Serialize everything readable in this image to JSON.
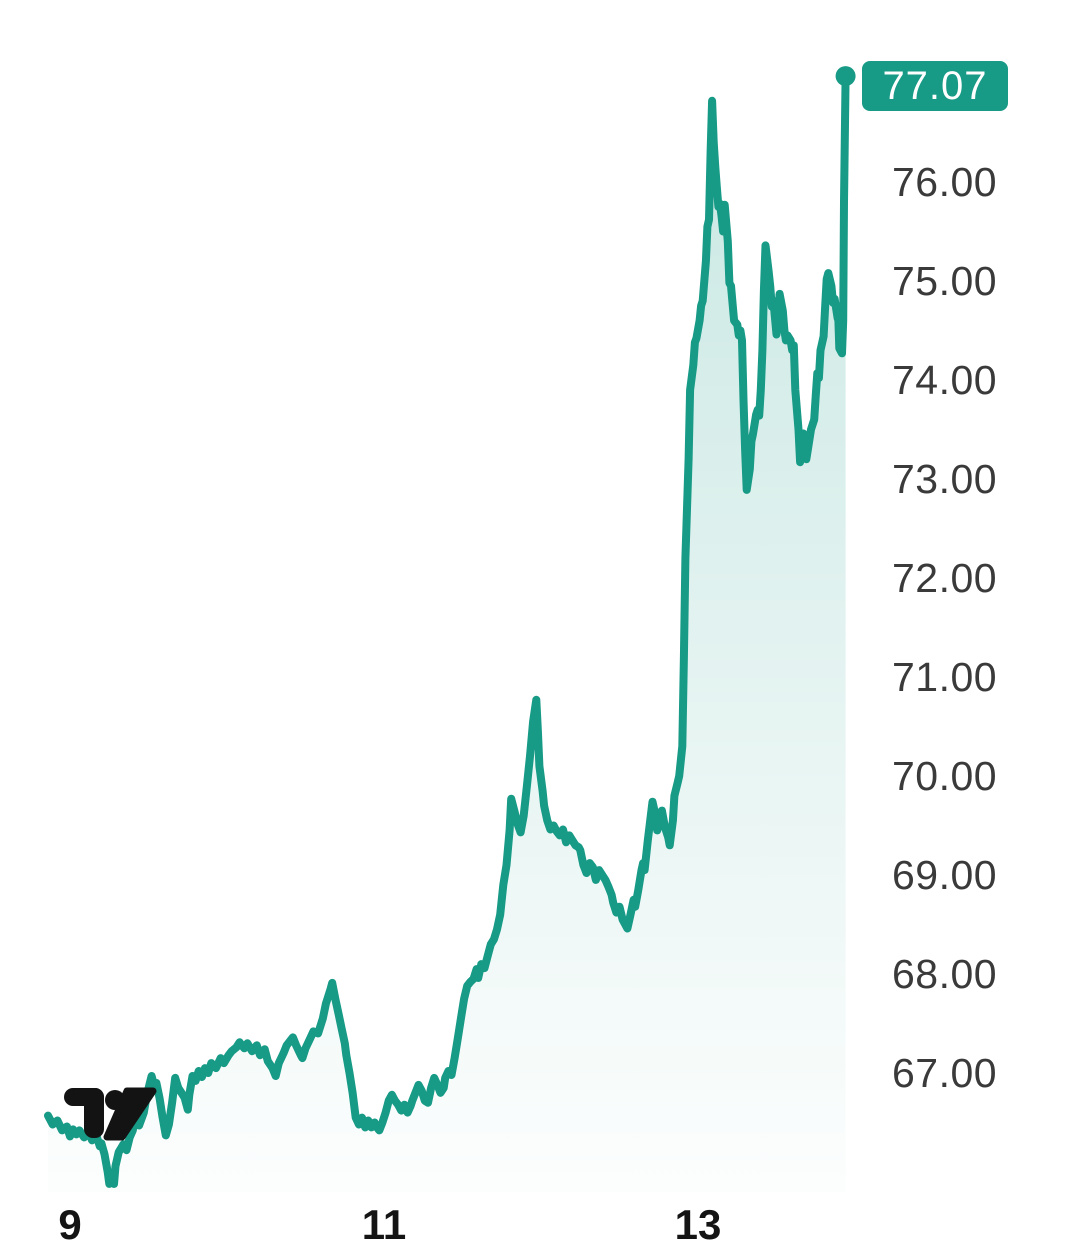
{
  "chart_data": {
    "type": "area",
    "title": "",
    "last_price": 77.07,
    "last_price_label": "77.07",
    "x_axis": {
      "label": "",
      "range": [
        8.85,
        13.95
      ],
      "ticks": [
        {
          "value": 9,
          "label": "9"
        },
        {
          "value": 11,
          "label": "11"
        },
        {
          "value": 13,
          "label": "13"
        }
      ]
    },
    "y_axis": {
      "label": "",
      "range": [
        65.8,
        77.2
      ],
      "ticks": [
        {
          "value": 76,
          "label": "76.00"
        },
        {
          "value": 75,
          "label": "75.00"
        },
        {
          "value": 74,
          "label": "74.00"
        },
        {
          "value": 73,
          "label": "73.00"
        },
        {
          "value": 72,
          "label": "72.00"
        },
        {
          "value": 71,
          "label": "71.00"
        },
        {
          "value": 70,
          "label": "70.00"
        },
        {
          "value": 69,
          "label": "69.00"
        },
        {
          "value": 68,
          "label": "68.00"
        },
        {
          "value": 67,
          "label": "67.00"
        }
      ]
    },
    "grid": false,
    "legend": false,
    "series": [
      {
        "name": "price",
        "points": [
          [
            8.86,
            66.57
          ],
          [
            8.89,
            66.48
          ],
          [
            8.92,
            66.52
          ],
          [
            8.95,
            66.42
          ],
          [
            8.98,
            66.46
          ],
          [
            9.0,
            66.36
          ],
          [
            9.02,
            66.43
          ],
          [
            9.04,
            66.38
          ],
          [
            9.06,
            66.42
          ],
          [
            9.09,
            66.35
          ],
          [
            9.12,
            66.4
          ],
          [
            9.14,
            66.32
          ],
          [
            9.17,
            66.36
          ],
          [
            9.19,
            66.26
          ],
          [
            9.2,
            66.29
          ],
          [
            9.22,
            66.18
          ],
          [
            9.24,
            66.0
          ],
          [
            9.25,
            65.88
          ],
          [
            9.26,
            65.96
          ],
          [
            9.28,
            65.88
          ],
          [
            9.29,
            66.06
          ],
          [
            9.31,
            66.2
          ],
          [
            9.34,
            66.28
          ],
          [
            9.36,
            66.22
          ],
          [
            9.38,
            66.35
          ],
          [
            9.4,
            66.42
          ],
          [
            9.41,
            66.52
          ],
          [
            9.44,
            66.47
          ],
          [
            9.47,
            66.6
          ],
          [
            9.49,
            66.78
          ],
          [
            9.52,
            66.97
          ],
          [
            9.54,
            66.85
          ],
          [
            9.55,
            66.9
          ],
          [
            9.57,
            66.75
          ],
          [
            9.59,
            66.55
          ],
          [
            9.61,
            66.37
          ],
          [
            9.63,
            66.48
          ],
          [
            9.65,
            66.7
          ],
          [
            9.67,
            66.95
          ],
          [
            9.69,
            66.85
          ],
          [
            9.71,
            66.8
          ],
          [
            9.73,
            66.75
          ],
          [
            9.75,
            66.63
          ],
          [
            9.76,
            66.78
          ],
          [
            9.78,
            66.97
          ],
          [
            9.8,
            66.92
          ],
          [
            9.82,
            67.02
          ],
          [
            9.84,
            66.96
          ],
          [
            9.86,
            67.05
          ],
          [
            9.88,
            67.0
          ],
          [
            9.9,
            67.1
          ],
          [
            9.93,
            67.05
          ],
          [
            9.96,
            67.15
          ],
          [
            9.98,
            67.1
          ],
          [
            10.01,
            67.18
          ],
          [
            10.03,
            67.22
          ],
          [
            10.06,
            67.26
          ],
          [
            10.08,
            67.31
          ],
          [
            10.11,
            67.25
          ],
          [
            10.13,
            67.3
          ],
          [
            10.16,
            67.22
          ],
          [
            10.19,
            67.28
          ],
          [
            10.21,
            67.18
          ],
          [
            10.24,
            67.24
          ],
          [
            10.26,
            67.12
          ],
          [
            10.29,
            67.05
          ],
          [
            10.31,
            66.97
          ],
          [
            10.33,
            67.1
          ],
          [
            10.36,
            67.2
          ],
          [
            10.38,
            67.28
          ],
          [
            10.4,
            67.32
          ],
          [
            10.42,
            67.36
          ],
          [
            10.44,
            67.28
          ],
          [
            10.47,
            67.18
          ],
          [
            10.48,
            67.15
          ],
          [
            10.5,
            67.25
          ],
          [
            10.53,
            67.35
          ],
          [
            10.55,
            67.42
          ],
          [
            10.58,
            67.4
          ],
          [
            10.61,
            67.55
          ],
          [
            10.63,
            67.7
          ],
          [
            10.66,
            67.85
          ],
          [
            10.67,
            67.91
          ],
          [
            10.69,
            67.75
          ],
          [
            10.71,
            67.6
          ],
          [
            10.73,
            67.45
          ],
          [
            10.75,
            67.3
          ],
          [
            10.76,
            67.18
          ],
          [
            10.78,
            67.0
          ],
          [
            10.8,
            66.8
          ],
          [
            10.82,
            66.55
          ],
          [
            10.84,
            66.48
          ],
          [
            10.86,
            66.55
          ],
          [
            10.88,
            66.45
          ],
          [
            10.9,
            66.52
          ],
          [
            10.92,
            66.45
          ],
          [
            10.94,
            66.5
          ],
          [
            10.96,
            66.44
          ],
          [
            10.97,
            66.42
          ],
          [
            10.99,
            66.5
          ],
          [
            11.01,
            66.6
          ],
          [
            11.03,
            66.72
          ],
          [
            11.05,
            66.78
          ],
          [
            11.07,
            66.72
          ],
          [
            11.09,
            66.68
          ],
          [
            11.11,
            66.62
          ],
          [
            11.13,
            66.68
          ],
          [
            11.15,
            66.6
          ],
          [
            11.17,
            66.67
          ],
          [
            11.18,
            66.72
          ],
          [
            11.2,
            66.8
          ],
          [
            11.22,
            66.88
          ],
          [
            11.24,
            66.82
          ],
          [
            11.26,
            66.72
          ],
          [
            11.28,
            66.7
          ],
          [
            11.3,
            66.85
          ],
          [
            11.32,
            66.95
          ],
          [
            11.34,
            66.88
          ],
          [
            11.36,
            66.8
          ],
          [
            11.38,
            66.85
          ],
          [
            11.39,
            66.95
          ],
          [
            11.41,
            67.02
          ],
          [
            11.43,
            66.98
          ],
          [
            11.45,
            67.15
          ],
          [
            11.47,
            67.35
          ],
          [
            11.49,
            67.55
          ],
          [
            11.51,
            67.75
          ],
          [
            11.53,
            67.88
          ],
          [
            11.55,
            67.92
          ],
          [
            11.57,
            67.95
          ],
          [
            11.59,
            68.05
          ],
          [
            11.6,
            67.96
          ],
          [
            11.62,
            68.1
          ],
          [
            11.64,
            68.06
          ],
          [
            11.66,
            68.18
          ],
          [
            11.68,
            68.3
          ],
          [
            11.7,
            68.35
          ],
          [
            11.72,
            68.45
          ],
          [
            11.74,
            68.6
          ],
          [
            11.76,
            68.9
          ],
          [
            11.78,
            69.1
          ],
          [
            11.8,
            69.45
          ],
          [
            11.81,
            69.77
          ],
          [
            11.83,
            69.65
          ],
          [
            11.85,
            69.52
          ],
          [
            11.87,
            69.43
          ],
          [
            11.89,
            69.6
          ],
          [
            11.91,
            69.9
          ],
          [
            11.93,
            70.2
          ],
          [
            11.95,
            70.55
          ],
          [
            11.97,
            70.77
          ],
          [
            11.98,
            70.45
          ],
          [
            11.99,
            70.1
          ],
          [
            12.01,
            69.85
          ],
          [
            12.02,
            69.7
          ],
          [
            12.04,
            69.55
          ],
          [
            12.06,
            69.46
          ],
          [
            12.08,
            69.5
          ],
          [
            12.1,
            69.44
          ],
          [
            12.12,
            69.4
          ],
          [
            12.14,
            69.46
          ],
          [
            12.16,
            69.33
          ],
          [
            12.18,
            69.4
          ],
          [
            12.2,
            69.35
          ],
          [
            12.22,
            69.3
          ],
          [
            12.24,
            69.28
          ],
          [
            12.25,
            69.25
          ],
          [
            12.27,
            69.1
          ],
          [
            12.29,
            69.02
          ],
          [
            12.31,
            69.12
          ],
          [
            12.33,
            69.08
          ],
          [
            12.35,
            68.95
          ],
          [
            12.37,
            69.05
          ],
          [
            12.39,
            69.0
          ],
          [
            12.41,
            68.95
          ],
          [
            12.43,
            68.88
          ],
          [
            12.45,
            68.8
          ],
          [
            12.46,
            68.72
          ],
          [
            12.48,
            68.62
          ],
          [
            12.5,
            68.68
          ],
          [
            12.52,
            68.55
          ],
          [
            12.55,
            68.46
          ],
          [
            12.57,
            68.6
          ],
          [
            12.59,
            68.75
          ],
          [
            12.6,
            68.68
          ],
          [
            12.62,
            68.85
          ],
          [
            12.64,
            69.05
          ],
          [
            12.65,
            69.12
          ],
          [
            12.66,
            69.05
          ],
          [
            12.68,
            69.35
          ],
          [
            12.71,
            69.74
          ],
          [
            12.73,
            69.6
          ],
          [
            12.74,
            69.45
          ],
          [
            12.76,
            69.55
          ],
          [
            12.77,
            69.65
          ],
          [
            12.79,
            69.48
          ],
          [
            12.81,
            69.38
          ],
          [
            12.82,
            69.3
          ],
          [
            12.84,
            69.55
          ],
          [
            12.85,
            69.8
          ],
          [
            12.87,
            69.93
          ],
          [
            12.88,
            70.0
          ],
          [
            12.9,
            70.3
          ],
          [
            12.91,
            71.2
          ],
          [
            12.92,
            72.2
          ],
          [
            12.94,
            73.2
          ],
          [
            12.95,
            73.9
          ],
          [
            12.97,
            74.15
          ],
          [
            12.98,
            74.38
          ],
          [
            12.99,
            74.42
          ],
          [
            13.01,
            74.6
          ],
          [
            13.02,
            74.75
          ],
          [
            13.03,
            74.8
          ],
          [
            13.05,
            75.2
          ],
          [
            13.06,
            75.55
          ],
          [
            13.07,
            75.62
          ],
          [
            13.08,
            76.3
          ],
          [
            13.09,
            76.82
          ],
          [
            13.1,
            76.4
          ],
          [
            13.11,
            76.15
          ],
          [
            13.12,
            75.95
          ],
          [
            13.13,
            75.75
          ],
          [
            13.14,
            75.78
          ],
          [
            13.15,
            75.65
          ],
          [
            13.16,
            75.5
          ],
          [
            13.17,
            75.77
          ],
          [
            13.19,
            75.4
          ],
          [
            13.2,
            74.98
          ],
          [
            13.21,
            74.95
          ],
          [
            13.22,
            74.78
          ],
          [
            13.23,
            74.6
          ],
          [
            13.24,
            74.58
          ],
          [
            13.25,
            74.56
          ],
          [
            13.26,
            74.45
          ],
          [
            13.27,
            74.5
          ],
          [
            13.28,
            74.4
          ],
          [
            13.29,
            73.8
          ],
          [
            13.3,
            73.3
          ],
          [
            13.31,
            72.89
          ],
          [
            13.33,
            73.1
          ],
          [
            13.34,
            73.38
          ],
          [
            13.35,
            73.45
          ],
          [
            13.36,
            73.55
          ],
          [
            13.37,
            73.65
          ],
          [
            13.38,
            73.7
          ],
          [
            13.39,
            73.64
          ],
          [
            13.4,
            73.9
          ],
          [
            13.41,
            74.3
          ],
          [
            13.42,
            74.9
          ],
          [
            13.43,
            75.36
          ],
          [
            13.45,
            75.1
          ],
          [
            13.46,
            74.95
          ],
          [
            13.47,
            74.74
          ],
          [
            13.48,
            74.8
          ],
          [
            13.5,
            74.46
          ],
          [
            13.51,
            74.65
          ],
          [
            13.52,
            74.87
          ],
          [
            13.54,
            74.7
          ],
          [
            13.55,
            74.5
          ],
          [
            13.56,
            74.4
          ],
          [
            13.57,
            74.45
          ],
          [
            13.59,
            74.4
          ],
          [
            13.6,
            74.3
          ],
          [
            13.61,
            74.35
          ],
          [
            13.62,
            73.9
          ],
          [
            13.64,
            73.5
          ],
          [
            13.65,
            73.17
          ],
          [
            13.66,
            73.35
          ],
          [
            13.67,
            73.46
          ],
          [
            13.68,
            73.3
          ],
          [
            13.69,
            73.2
          ],
          [
            13.7,
            73.3
          ],
          [
            13.72,
            73.5
          ],
          [
            13.74,
            73.6
          ],
          [
            13.75,
            73.85
          ],
          [
            13.76,
            74.07
          ],
          [
            13.77,
            74.02
          ],
          [
            13.78,
            74.3
          ],
          [
            13.8,
            74.44
          ],
          [
            13.81,
            74.75
          ],
          [
            13.82,
            75.02
          ],
          [
            13.83,
            75.08
          ],
          [
            13.85,
            74.95
          ],
          [
            13.86,
            74.78
          ],
          [
            13.87,
            74.82
          ],
          [
            13.89,
            74.62
          ],
          [
            13.893,
            74.66
          ],
          [
            13.9,
            74.32
          ],
          [
            13.917,
            74.27
          ],
          [
            13.925,
            74.6
          ],
          [
            13.93,
            75.8
          ],
          [
            13.94,
            77.07
          ]
        ]
      }
    ],
    "colors": {
      "line": "#179a86",
      "accent": "#179a86",
      "area_top": "rgba(23,154,134,0.24)",
      "area_bottom": "rgba(23,154,134,0.01)",
      "y_axis_text": "#3a3a3a",
      "x_axis_text": "#141414",
      "badge_text": "#ffffff",
      "logo": "#131313",
      "background": "#ffffff"
    }
  },
  "icons": {
    "watermark": "tradingview-logo"
  }
}
